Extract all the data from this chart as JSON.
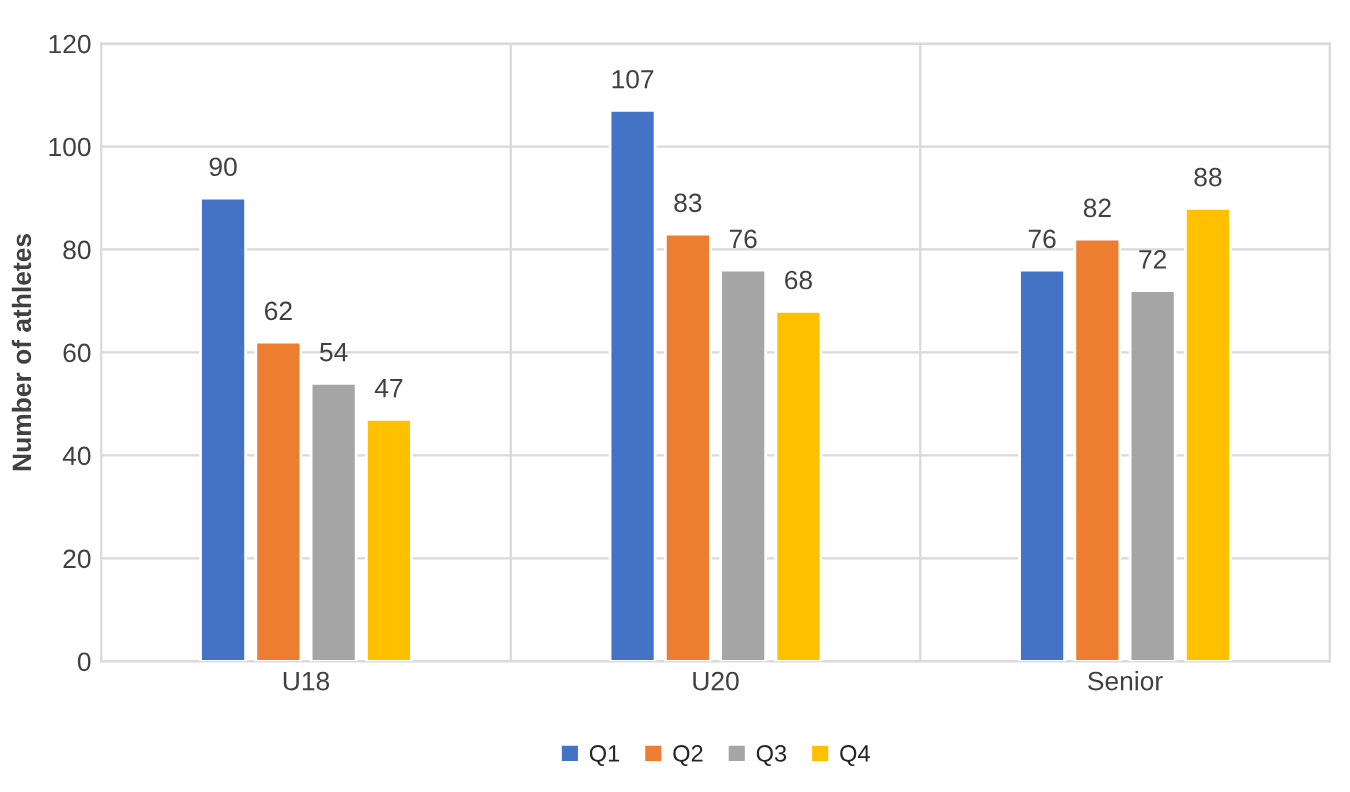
{
  "chart_data": {
    "type": "bar",
    "ylabel": "Number of athletes",
    "categories": [
      "U18",
      "U20",
      "Senior"
    ],
    "series": [
      {
        "name": "Q1",
        "color": "#4472c4",
        "values": [
          90,
          107,
          76
        ]
      },
      {
        "name": "Q2",
        "color": "#ed7d31",
        "values": [
          62,
          83,
          82
        ]
      },
      {
        "name": "Q3",
        "color": "#a5a5a5",
        "values": [
          54,
          76,
          72
        ]
      },
      {
        "name": "Q4",
        "color": "#ffc000",
        "values": [
          47,
          68,
          88
        ]
      }
    ],
    "ylim": [
      0,
      120
    ],
    "yticks": [
      0,
      20,
      40,
      60,
      80,
      100,
      120
    ],
    "grid": true,
    "legend": "bottom",
    "data_labels": true
  }
}
